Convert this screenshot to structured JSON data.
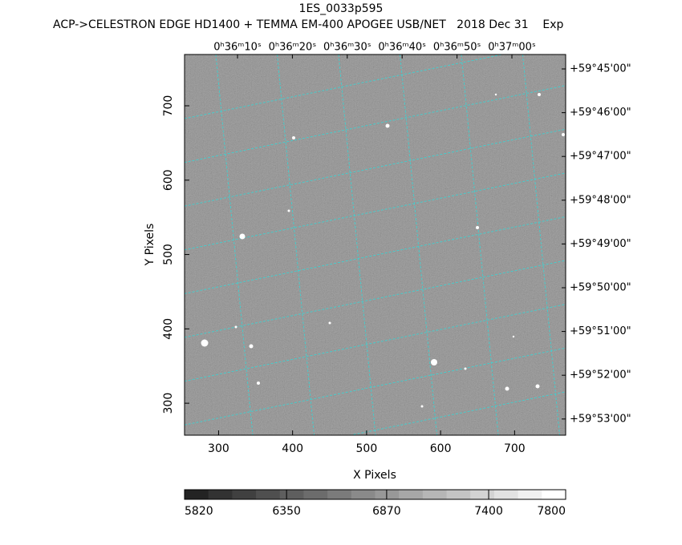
{
  "chart_data": {
    "type": "image",
    "title": "1ES_0033p595",
    "subtitle": "ACP->CELESTRON EDGE HD1400 + TEMMA EM-400 APOGEE USB/NET   2018 Dec 31    Exp",
    "xlabel": "X Pixels",
    "ylabel": "Y Pixels",
    "xlim": [
      254,
      769
    ],
    "ylim": [
      257,
      769
    ],
    "xticks": [
      300,
      400,
      500,
      600,
      700
    ],
    "yticks": [
      300,
      400,
      500,
      600,
      700
    ],
    "ra_labels": [
      "0ʰ36ᵐ10ˢ",
      "0ʰ36ᵐ20ˢ",
      "0ʰ36ᵐ30ˢ",
      "0ʰ36ᵐ40ˢ",
      "0ʰ36ᵐ50ˢ",
      "0ʰ37ᵐ00ˢ"
    ],
    "dec_labels": [
      "+59°45'00\"",
      "+59°46'00\"",
      "+59°47'00\"",
      "+59°48'00\"",
      "+59°49'00\"",
      "+59°50'00\"",
      "+59°51'00\"",
      "+59°52'00\"",
      "+59°53'00\""
    ],
    "grid_color": "#3fd0d0",
    "colorbar": {
      "clim": [
        5820,
        7800
      ],
      "ticks": [
        5820,
        6350,
        6870,
        7400,
        7800
      ]
    }
  }
}
